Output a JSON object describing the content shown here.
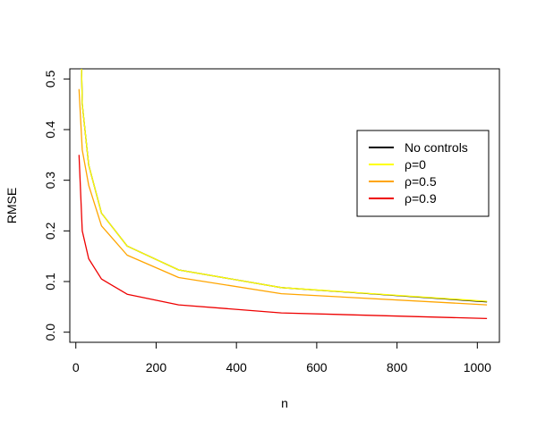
{
  "chart_data": {
    "type": "line",
    "title": "",
    "xlabel": "n",
    "ylabel": "RMSE",
    "xlim": [
      -15,
      1055
    ],
    "ylim": [
      -0.02,
      0.52
    ],
    "xticks": [
      0,
      200,
      400,
      600,
      800,
      1000
    ],
    "xtick_labels": [
      "0",
      "200",
      "400",
      "600",
      "800",
      "1000"
    ],
    "yticks": [
      0.0,
      0.1,
      0.2,
      0.3,
      0.4,
      0.5
    ],
    "ytick_labels": [
      "0.0",
      "0.1",
      "0.2",
      "0.3",
      "0.4",
      "0.5"
    ],
    "grid": false,
    "legend_position": "right",
    "series": [
      {
        "name": "No controls",
        "color": "#000000",
        "x": [
          8,
          16,
          32,
          64,
          128,
          256,
          512,
          1024
        ],
        "y": [
          0.78,
          0.45,
          0.33,
          0.235,
          0.17,
          0.123,
          0.088,
          0.06
        ]
      },
      {
        "name": "ρ=0",
        "color": "#ffff00",
        "x": [
          8,
          16,
          32,
          64,
          128,
          256,
          512,
          1024
        ],
        "y": [
          0.78,
          0.45,
          0.33,
          0.235,
          0.17,
          0.123,
          0.088,
          0.061
        ]
      },
      {
        "name": "ρ=0.5",
        "color": "#ffa500",
        "x": [
          8,
          16,
          32,
          64,
          128,
          256,
          512,
          1024
        ],
        "y": [
          0.48,
          0.36,
          0.29,
          0.21,
          0.152,
          0.108,
          0.076,
          0.054
        ]
      },
      {
        "name": "ρ=0.9",
        "color": "#ee0000",
        "x": [
          8,
          16,
          32,
          64,
          128,
          256,
          512,
          1024
        ],
        "y": [
          0.35,
          0.2,
          0.145,
          0.105,
          0.075,
          0.054,
          0.038,
          0.027
        ]
      }
    ]
  }
}
